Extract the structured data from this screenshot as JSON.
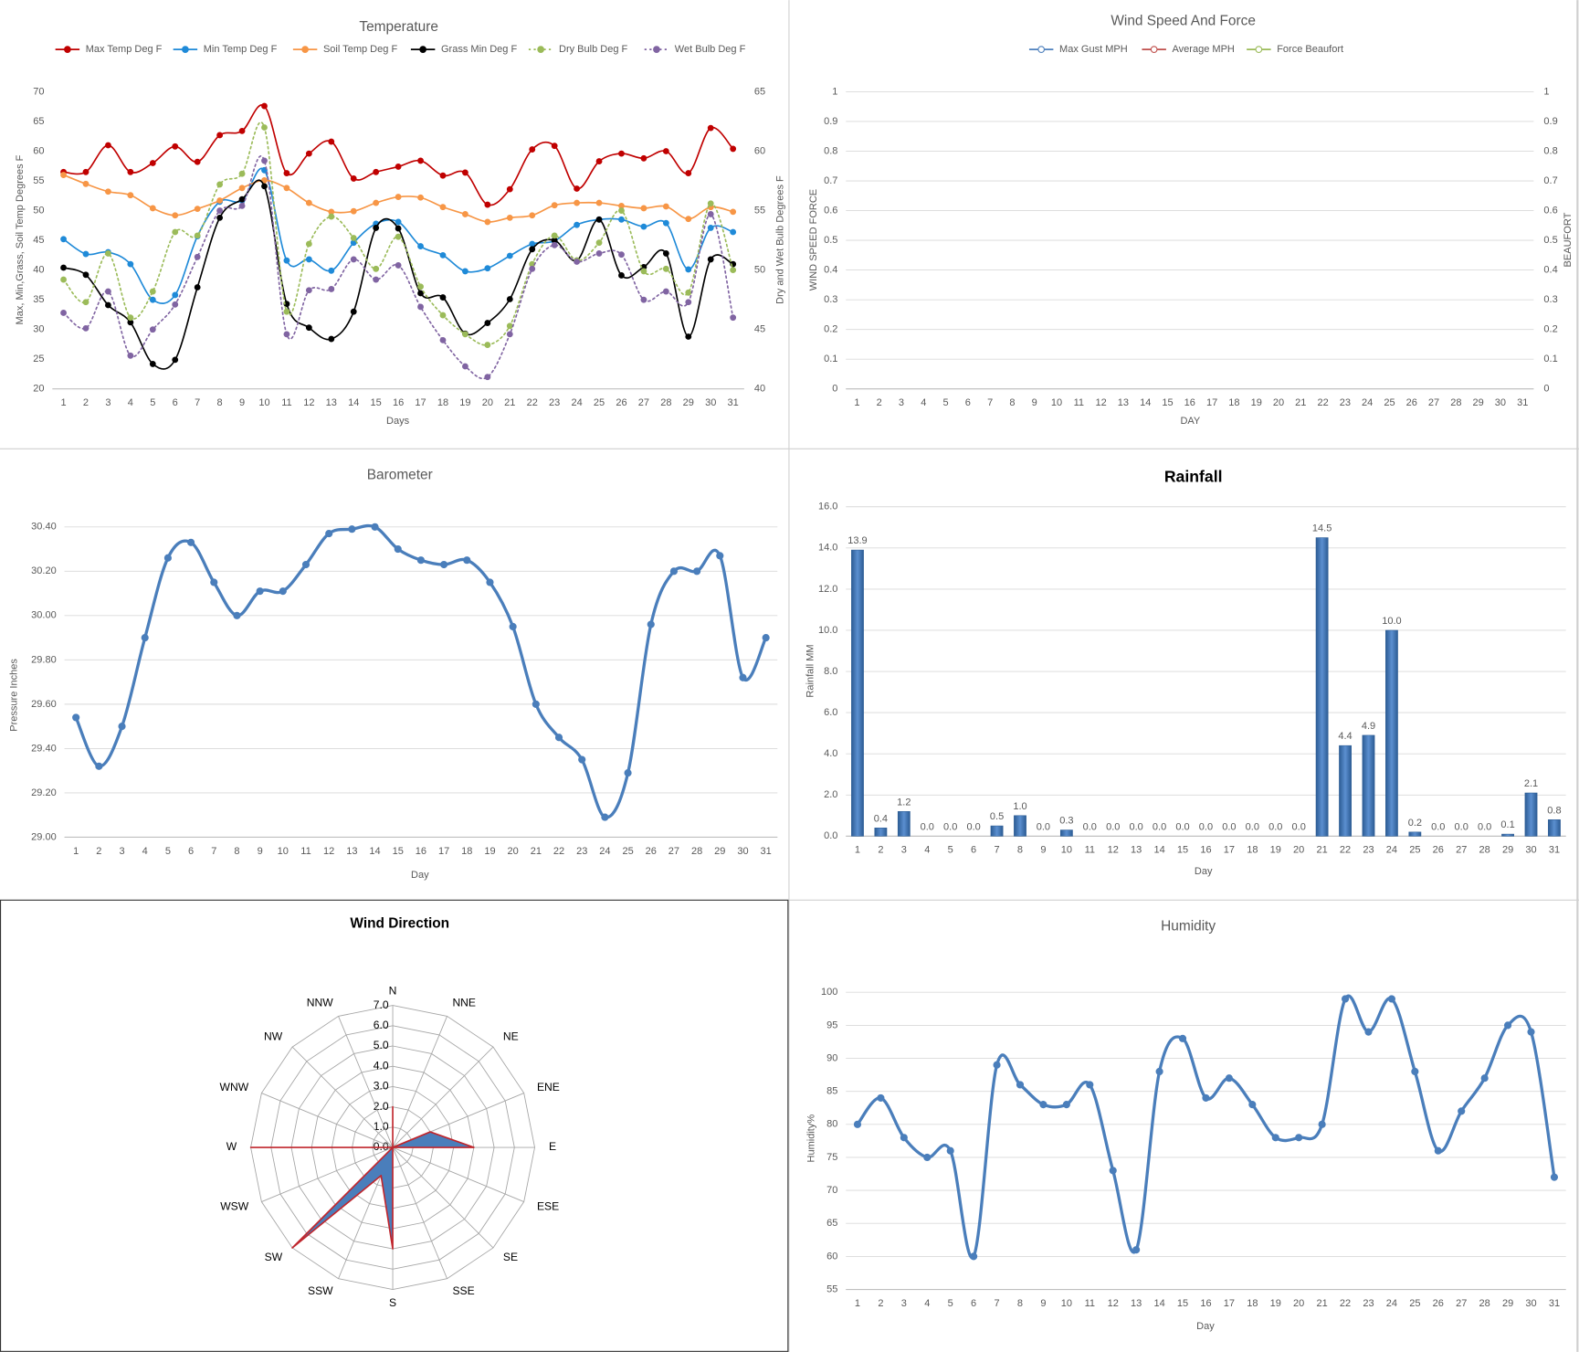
{
  "chart_data": [
    {
      "type": "line",
      "title": "Temperature",
      "categories": [
        1,
        2,
        3,
        4,
        5,
        6,
        7,
        8,
        9,
        10,
        11,
        12,
        13,
        14,
        15,
        16,
        17,
        18,
        19,
        20,
        21,
        22,
        23,
        24,
        25,
        26,
        27,
        28,
        29,
        30,
        31
      ],
      "xlabel": "Days",
      "ylabel": "Max, Min,Grass, Soil Temp Degrees F",
      "y2label": "Dry and Wet Bulb Degrees F",
      "ylim": [
        20,
        70
      ],
      "yticks": [
        20,
        25,
        30,
        35,
        40,
        45,
        50,
        55,
        60,
        65,
        70
      ],
      "y2lim": [
        40,
        65
      ],
      "y2ticks": [
        40,
        45,
        50,
        55,
        60,
        65
      ],
      "grid": false,
      "smooth": true,
      "markers": "filled",
      "legend": "top",
      "series": [
        {
          "name": "Max Temp Deg F",
          "color": "#c00000",
          "values": [
            56.5,
            56.5,
            61,
            56.5,
            58,
            60.8,
            58.2,
            62.7,
            63.4,
            67.6,
            56.3,
            59.6,
            61.6,
            55.4,
            56.5,
            57.4,
            58.4,
            55.9,
            56.4,
            51,
            53.6,
            60.3,
            60.9,
            53.7,
            58.3,
            59.6,
            58.8,
            60,
            56.3,
            63.9,
            60.4
          ]
        },
        {
          "name": "Min Temp Deg F",
          "color": "#1f8ad8",
          "values": [
            45.2,
            42.7,
            43,
            41,
            35,
            35.8,
            45.7,
            51.5,
            51.7,
            56.8,
            41.6,
            41.8,
            39.9,
            44.6,
            47.8,
            48.1,
            44,
            42.5,
            39.8,
            40.3,
            42.4,
            44.4,
            44.9,
            47.6,
            48.5,
            48.5,
            47.3,
            47.9,
            40.1,
            47.1,
            46.4
          ]
        },
        {
          "name": "Soil Temp Deg F",
          "color": "#f79646",
          "values": [
            56,
            54.5,
            53.2,
            52.6,
            50.4,
            49.2,
            50.3,
            51.7,
            53.8,
            55.1,
            53.8,
            51.3,
            49.8,
            49.9,
            51.3,
            52.3,
            52.2,
            50.6,
            49.4,
            48.1,
            48.8,
            49.2,
            50.9,
            51.3,
            51.3,
            50.8,
            50.4,
            50.7,
            48.6,
            50.6,
            49.8
          ]
        },
        {
          "name": "Grass Min Deg F",
          "color": "#000000",
          "values": [
            40.4,
            39.2,
            34.1,
            31.2,
            24.2,
            24.9,
            37.1,
            48.8,
            51.9,
            54.1,
            34.3,
            30.3,
            28.4,
            33,
            47.1,
            47,
            36.1,
            35.4,
            29.3,
            31.1,
            35.1,
            43.5,
            45,
            41.6,
            48.5,
            39.1,
            40.5,
            42.8,
            28.8,
            41.8,
            41
          ]
        },
        {
          "name": "Dry Bulb Deg F",
          "color": "#9bbb59",
          "dash": "dotted",
          "axis": "y2",
          "values": [
            49.2,
            47.3,
            51.4,
            46,
            48.2,
            53.2,
            52.9,
            57.2,
            58.1,
            62,
            46.5,
            52.2,
            54.5,
            52.7,
            50.1,
            52.8,
            48.6,
            46.2,
            44.6,
            43.7,
            45.3,
            50.5,
            52.9,
            50.8,
            52.3,
            55,
            49.9,
            50.1,
            48.1,
            55.6,
            50
          ]
        },
        {
          "name": "Wet Bulb Deg F",
          "color": "#8064a2",
          "dash": "dotted",
          "axis": "y2",
          "values": [
            46.4,
            45.1,
            48.2,
            42.8,
            45,
            47.1,
            51.1,
            55,
            55.4,
            59.2,
            44.6,
            48.3,
            48.4,
            50.9,
            49.2,
            50.4,
            46.9,
            44.1,
            41.9,
            41,
            44.6,
            50.1,
            52.1,
            50.7,
            51.4,
            51.3,
            47.5,
            48.2,
            47.3,
            54.7,
            46
          ]
        }
      ]
    },
    {
      "type": "line",
      "title": "Wind Speed And Force",
      "categories": [
        1,
        2,
        3,
        4,
        5,
        6,
        7,
        8,
        9,
        10,
        11,
        12,
        13,
        14,
        15,
        16,
        17,
        18,
        19,
        20,
        21,
        22,
        23,
        24,
        25,
        26,
        27,
        28,
        29,
        30,
        31
      ],
      "xlabel": "DAY",
      "ylabel": "WIND SPEED FORCE",
      "y2label": "BEAUFORT",
      "ylim": [
        0,
        1
      ],
      "yticks": [
        0,
        0.1,
        0.2,
        0.3,
        0.4,
        0.5,
        0.6,
        0.7,
        0.8,
        0.9,
        1
      ],
      "y2lim": [
        0,
        1
      ],
      "y2ticks": [
        0,
        0.1,
        0.2,
        0.3,
        0.4,
        0.5,
        0.6,
        0.7,
        0.8,
        0.9,
        1
      ],
      "grid": true,
      "smooth": true,
      "markers": "hollow",
      "legend": "top",
      "series": [
        {
          "name": "Max Gust MPH",
          "color": "#4f81bd",
          "values": [
            null,
            null,
            null,
            null,
            null,
            null,
            null,
            null,
            null,
            null,
            null,
            null,
            null,
            null,
            null,
            null,
            null,
            null,
            null,
            null,
            null,
            null,
            null,
            null,
            null,
            null,
            null,
            null,
            null,
            null,
            null
          ]
        },
        {
          "name": "Average MPH",
          "color": "#c0504d",
          "values": [
            null,
            null,
            null,
            null,
            null,
            null,
            null,
            null,
            null,
            null,
            null,
            null,
            null,
            null,
            null,
            null,
            null,
            null,
            null,
            null,
            null,
            null,
            null,
            null,
            null,
            null,
            null,
            null,
            null,
            null,
            null
          ]
        },
        {
          "name": "Force Beaufort",
          "color": "#9bbb59",
          "axis": "y2",
          "values": [
            null,
            null,
            null,
            null,
            null,
            null,
            null,
            null,
            null,
            null,
            null,
            null,
            null,
            null,
            null,
            null,
            null,
            null,
            null,
            null,
            null,
            null,
            null,
            null,
            null,
            null,
            null,
            null,
            null,
            null,
            null
          ]
        }
      ]
    },
    {
      "type": "line",
      "title": "Barometer",
      "categories": [
        1,
        2,
        3,
        4,
        5,
        6,
        7,
        8,
        9,
        10,
        11,
        12,
        13,
        14,
        15,
        16,
        17,
        18,
        19,
        20,
        21,
        22,
        23,
        24,
        25,
        26,
        27,
        28,
        29,
        30,
        31
      ],
      "xlabel": "Day",
      "ylabel": "Pressure Inches",
      "ylim": [
        29,
        30.4
      ],
      "yticks": [
        {
          "value": 29,
          "label": "29.00"
        },
        {
          "value": 29.2,
          "label": "29.20"
        },
        {
          "value": 29.4,
          "label": "29.40"
        },
        {
          "value": 29.6,
          "label": "29.60"
        },
        {
          "value": 29.8,
          "label": "29.80"
        },
        {
          "value": 30,
          "label": "30.00"
        },
        {
          "value": 30.2,
          "label": "30.20"
        },
        {
          "value": 30.4,
          "label": "30.40"
        }
      ],
      "grid": true,
      "smooth": true,
      "markers": "filled",
      "series": [
        {
          "name": "Pressure Inches",
          "color": "#4a7ebb",
          "values": [
            29.54,
            29.32,
            29.5,
            29.9,
            30.26,
            30.33,
            30.15,
            30.0,
            30.11,
            30.11,
            30.23,
            30.37,
            30.39,
            30.4,
            30.3,
            30.25,
            30.23,
            30.25,
            30.15,
            29.95,
            29.6,
            29.45,
            29.35,
            29.09,
            29.29,
            29.96,
            30.2,
            30.2,
            30.27,
            29.72,
            29.9
          ]
        }
      ]
    },
    {
      "type": "bar",
      "title": "Rainfall",
      "categories": [
        1,
        2,
        3,
        4,
        5,
        6,
        7,
        8,
        9,
        10,
        11,
        12,
        13,
        14,
        15,
        16,
        17,
        18,
        19,
        20,
        21,
        22,
        23,
        24,
        25,
        26,
        27,
        28,
        29,
        30,
        31
      ],
      "xlabel": "Day",
      "ylabel": "Rainfall MM",
      "ylim": [
        0,
        16
      ],
      "yticks": [
        {
          "value": 0,
          "label": "0.0"
        },
        {
          "value": 2,
          "label": "2.0"
        },
        {
          "value": 4,
          "label": "4.0"
        },
        {
          "value": 6,
          "label": "6.0"
        },
        {
          "value": 8,
          "label": "8.0"
        },
        {
          "value": 10,
          "label": "10.0"
        },
        {
          "value": 12,
          "label": "12.0"
        },
        {
          "value": 14,
          "label": "14.0"
        },
        {
          "value": 16,
          "label": "16.0"
        }
      ],
      "grid": true,
      "color": "#4f81bd",
      "values": [
        13.9,
        0.4,
        1.2,
        0,
        0,
        0,
        0.5,
        1.0,
        0,
        0.3,
        0,
        0,
        0,
        0,
        0,
        0,
        0,
        0,
        0,
        0,
        14.5,
        4.4,
        4.9,
        10,
        0.2,
        0,
        0,
        0,
        0.1,
        2.1,
        0.8
      ],
      "value_labels": [
        "13.9",
        "0.4",
        "1.2",
        "0.0",
        "0.0",
        "0.0",
        "0.5",
        "1.0",
        "0.0",
        "0.3",
        "0.0",
        "0.0",
        "0.0",
        "0.0",
        "0.0",
        "0.0",
        "0.0",
        "0.0",
        "0.0",
        "0.0",
        "14.5",
        "4.4",
        "4.9",
        "10.0",
        "0.2",
        "0.0",
        "0.0",
        "0.0",
        "0.1",
        "2.1",
        "0.8"
      ]
    },
    {
      "type": "radar",
      "title": "Wind Direction",
      "categories": [
        "N",
        "NNE",
        "NE",
        "ENE",
        "E",
        "ESE",
        "SE",
        "SSE",
        "S",
        "SSW",
        "SW",
        "WSW",
        "W",
        "WNW",
        "NW",
        "NNW"
      ],
      "values": [
        2,
        0,
        0,
        2,
        4,
        0,
        0,
        0,
        5,
        1.5,
        7,
        0,
        7,
        0,
        0,
        0
      ],
      "ylim": [
        0,
        7
      ],
      "yticks": [
        {
          "value": 0,
          "label": "0.0"
        },
        {
          "value": 1,
          "label": "1.0"
        },
        {
          "value": 2,
          "label": "2.0"
        },
        {
          "value": 3,
          "label": "3.0"
        },
        {
          "value": 4,
          "label": "4.0"
        },
        {
          "value": 5,
          "label": "5.0"
        },
        {
          "value": 6,
          "label": "6.0"
        },
        {
          "value": 7,
          "label": "7.0"
        }
      ],
      "grid": true,
      "color": "#4a7ebb",
      "line_color": "#c0262d"
    },
    {
      "type": "line",
      "title": "Humidity",
      "categories": [
        1,
        2,
        3,
        4,
        5,
        6,
        7,
        8,
        9,
        10,
        11,
        12,
        13,
        14,
        15,
        16,
        17,
        18,
        19,
        20,
        21,
        22,
        23,
        24,
        25,
        26,
        27,
        28,
        29,
        30,
        31
      ],
      "xlabel": "Day",
      "ylabel": "Humidity%",
      "ylim": [
        55,
        100
      ],
      "yticks": [
        55,
        60,
        65,
        70,
        75,
        80,
        85,
        90,
        95,
        100
      ],
      "grid": true,
      "smooth": true,
      "markers": "filled",
      "series": [
        {
          "name": "Humidity%",
          "color": "#4a7ebb",
          "values": [
            80,
            84,
            78,
            75,
            76,
            60,
            89,
            86,
            83,
            83,
            86,
            73,
            61,
            88,
            93,
            84,
            87,
            83,
            78,
            78,
            80,
            99,
            94,
            99,
            88,
            76,
            82,
            87,
            95,
            94,
            72
          ]
        }
      ]
    }
  ]
}
